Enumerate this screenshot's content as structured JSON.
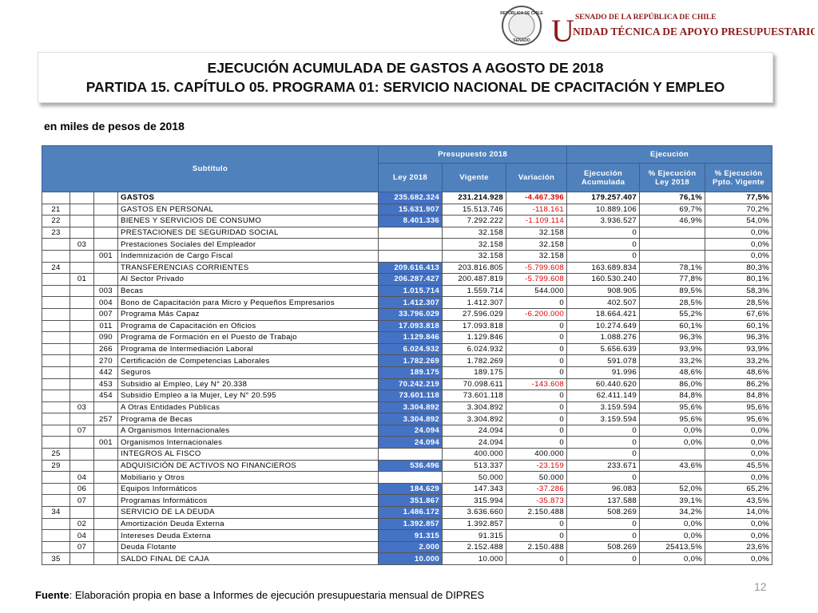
{
  "logo": {
    "seal_top": "REPÚBLICA DE CHILE",
    "seal_bottom": "SENADO",
    "letter": "U",
    "line1": "SENADO DE LA REPÚBLICA DE CHILE",
    "line2": "NIDAD TÉCNICA DE APOYO PRESUPUESTARIO"
  },
  "header": {
    "title": "EJECUCIÓN ACUMULADA DE GASTOS A AGOSTO DE 2018",
    "subtitle": "PARTIDA 15. CAPÍTULO 05. PROGRAMA 01: SERVICIO NACIONAL DE CPACITACIÓN Y EMPLEO",
    "units": "en miles de pesos de 2018"
  },
  "table": {
    "subtitulo": "Subtítulo",
    "presupuesto": "Presupuesto 2018",
    "ejecucion": "Ejecución",
    "columns": [
      "Ley 2018",
      "Vigente",
      "Variación",
      "Ejecución Acumulada",
      "% Ejecución Ley 2018",
      "% Ejecución Ppto. Vigente"
    ],
    "rows": [
      [
        null,
        null,
        null,
        "GASTOS",
        "235.682.324",
        "231.214.928",
        "-4.467.396",
        "179.257.407",
        "76,1%",
        "77,5%"
      ],
      [
        "21",
        null,
        null,
        "GASTOS EN PERSONAL",
        "15.631.907",
        "15.513.746",
        "-118.161",
        "10.889.106",
        "69,7%",
        "70,2%"
      ],
      [
        "22",
        null,
        null,
        "BIENES Y SERVICIOS DE CONSUMO",
        "8.401.336",
        "7.292.222",
        "-1.109.114",
        "3.936.527",
        "46,9%",
        "54,0%"
      ],
      [
        "23",
        null,
        null,
        "PRESTACIONES DE SEGURIDAD SOCIAL",
        null,
        "32.158",
        "32.158",
        "0",
        null,
        "0,0%"
      ],
      [
        null,
        "03",
        null,
        "Prestaciones Sociales del Empleador",
        null,
        "32.158",
        "32.158",
        "0",
        null,
        "0,0%"
      ],
      [
        null,
        null,
        "001",
        "Indemnización de Cargo Fiscal",
        null,
        "32.158",
        "32.158",
        "0",
        null,
        "0,0%"
      ],
      [
        "24",
        null,
        null,
        "TRANSFERENCIAS CORRIENTES",
        "209.616.413",
        "203.816.805",
        "-5.799.608",
        "163.689.834",
        "78,1%",
        "80,3%"
      ],
      [
        null,
        "01",
        null,
        "Al Sector Privado",
        "206.287.427",
        "200.487.819",
        "-5.799.608",
        "160.530.240",
        "77,8%",
        "80,1%"
      ],
      [
        null,
        null,
        "003",
        "Becas",
        "1.015.714",
        "1.559.714",
        "544.000",
        "908.905",
        "89,5%",
        "58,3%"
      ],
      [
        null,
        null,
        "004",
        "Bono de Capacitación para Micro y Pequeños Empresarios",
        "1.412.307",
        "1.412.307",
        "0",
        "402.507",
        "28,5%",
        "28,5%"
      ],
      [
        null,
        null,
        "007",
        "Programa Más Capaz",
        "33.796.029",
        "27.596.029",
        "-6.200.000",
        "18.664.421",
        "55,2%",
        "67,6%"
      ],
      [
        null,
        null,
        "011",
        "Programa de Capacitación en Oficios",
        "17.093.818",
        "17.093.818",
        "0",
        "10.274.649",
        "60,1%",
        "60,1%"
      ],
      [
        null,
        null,
        "090",
        "Programa de Formación en el Puesto de Trabajo",
        "1.129.846",
        "1.129.846",
        "0",
        "1.088.276",
        "96,3%",
        "96,3%"
      ],
      [
        null,
        null,
        "266",
        "Programa de Intermediación Laboral",
        "6.024.932",
        "6.024.932",
        "0",
        "5.656.639",
        "93,9%",
        "93,9%"
      ],
      [
        null,
        null,
        "270",
        "Certificación de Competencias Laborales",
        "1.782.269",
        "1.782.269",
        "0",
        "591.078",
        "33,2%",
        "33,2%"
      ],
      [
        null,
        null,
        "442",
        "Seguros",
        "189.175",
        "189.175",
        "0",
        "91.996",
        "48,6%",
        "48,6%"
      ],
      [
        null,
        null,
        "453",
        "Subsidio al Empleo, Ley N° 20.338",
        "70.242.219",
        "70.098.611",
        "-143.608",
        "60.440.620",
        "86,0%",
        "86,2%"
      ],
      [
        null,
        null,
        "454",
        "Subsidio Empleo a la Mujer, Ley N° 20.595",
        "73.601.118",
        "73.601.118",
        "0",
        "62.411.149",
        "84,8%",
        "84,8%"
      ],
      [
        null,
        "03",
        null,
        "A Otras Entidades Públicas",
        "3.304.892",
        "3.304.892",
        "0",
        "3.159.594",
        "95,6%",
        "95,6%"
      ],
      [
        null,
        null,
        "257",
        "Programa de Becas",
        "3.304.892",
        "3.304.892",
        "0",
        "3.159.594",
        "95,6%",
        "95,6%"
      ],
      [
        null,
        "07",
        null,
        "A Organismos Internacionales",
        "24.094",
        "24.094",
        "0",
        "0",
        "0,0%",
        "0,0%"
      ],
      [
        null,
        null,
        "001",
        "Organismos Internacionales",
        "24.094",
        "24.094",
        "0",
        "0",
        "0,0%",
        "0,0%"
      ],
      [
        "25",
        null,
        null,
        "INTEGROS AL FISCO",
        null,
        "400.000",
        "400.000",
        "0",
        null,
        "0,0%"
      ],
      [
        "29",
        null,
        null,
        "ADQUISICIÓN DE ACTIVOS NO FINANCIEROS",
        "536.496",
        "513.337",
        "-23.159",
        "233.671",
        "43,6%",
        "45,5%"
      ],
      [
        null,
        "04",
        null,
        "Mobiliario y Otros",
        null,
        "50.000",
        "50.000",
        "0",
        null,
        "0,0%"
      ],
      [
        null,
        "06",
        null,
        "Equipos Informáticos",
        "184.629",
        "147.343",
        "-37.286",
        "96.083",
        "52,0%",
        "65,2%"
      ],
      [
        null,
        "07",
        null,
        "Programas Informáticos",
        "351.867",
        "315.994",
        "-35.873",
        "137.588",
        "39,1%",
        "43,5%"
      ],
      [
        "34",
        null,
        null,
        "SERVICIO DE LA DEUDA",
        "1.486.172",
        "3.636.660",
        "2.150.488",
        "508.269",
        "34,2%",
        "14,0%"
      ],
      [
        null,
        "02",
        null,
        "Amortización Deuda Externa",
        "1.392.857",
        "1.392.857",
        "0",
        "0",
        "0,0%",
        "0,0%"
      ],
      [
        null,
        "04",
        null,
        "Intereses Deuda Externa",
        "91.315",
        "91.315",
        "0",
        "0",
        "0,0%",
        "0,0%"
      ],
      [
        null,
        "07",
        null,
        "Deuda Flotante",
        "2.000",
        "2.152.488",
        "2.150.488",
        "508.269",
        "25413,5%",
        "23,6%"
      ],
      [
        "35",
        null,
        null,
        "SALDO FINAL DE CAJA",
        "10.000",
        "10.000",
        "0",
        "0",
        "0,0%",
        "0,0%"
      ]
    ]
  },
  "footer": {
    "source_label": "Fuente",
    "source_text": ": Elaboración propia en base  a Informes de ejecución presupuestaria mensual de DIPRES",
    "page": "12"
  }
}
